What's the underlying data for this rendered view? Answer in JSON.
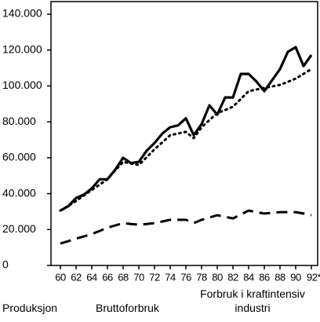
{
  "chart_data": {
    "type": "line",
    "x": [
      60,
      61,
      62,
      63,
      64,
      65,
      66,
      67,
      68,
      69,
      70,
      71,
      72,
      73,
      74,
      75,
      76,
      77,
      78,
      79,
      80,
      81,
      82,
      83,
      84,
      85,
      86,
      87,
      88,
      89,
      90,
      91,
      92
    ],
    "series": [
      {
        "name": "Produksjon",
        "color": "#000000",
        "style": "solid",
        "values": [
          30600,
          33000,
          37600,
          39400,
          42900,
          48000,
          48000,
          53400,
          60000,
          57000,
          57700,
          63900,
          68200,
          73500,
          77000,
          78000,
          82000,
          72600,
          78700,
          89200,
          84000,
          93600,
          93600,
          106700,
          106700,
          102400,
          97100,
          103200,
          109400,
          119000,
          121600,
          111100,
          117200
        ]
      },
      {
        "name": "Bruttoforbruk",
        "color": "#000000",
        "style": "dotted",
        "values": [
          30600,
          33200,
          35900,
          39000,
          42000,
          45000,
          48000,
          53000,
          57700,
          56800,
          56000,
          60300,
          64700,
          68600,
          72600,
          73500,
          74400,
          70900,
          77000,
          81000,
          84900,
          86600,
          88400,
          92700,
          97100,
          98000,
          98900,
          99700,
          100600,
          102300,
          104100,
          106700,
          109400
        ]
      },
      {
        "name": "Forbruk i kraftintensiv industri",
        "color": "#000000",
        "style": "dashed",
        "values": [
          12200,
          13500,
          14900,
          16200,
          17500,
          19200,
          21000,
          22300,
          23600,
          23100,
          22700,
          23100,
          23600,
          24500,
          25400,
          25400,
          25400,
          23600,
          25400,
          26700,
          28000,
          27100,
          26200,
          28400,
          30600,
          29700,
          28900,
          29300,
          29700,
          29700,
          29700,
          28900,
          28000
        ]
      }
    ],
    "xlim": [
      58.8,
      92.8
    ],
    "xticks": [
      60,
      62,
      64,
      66,
      68,
      70,
      72,
      74,
      76,
      78,
      80,
      82,
      84,
      86,
      88,
      90,
      {
        "value": 92,
        "label": "92*"
      }
    ],
    "ylim": [
      0,
      140000
    ],
    "yticks": [
      0,
      {
        "value": 20000,
        "label": "20.000"
      },
      {
        "value": 40000,
        "label": "40.000"
      },
      {
        "value": 60000,
        "label": "60.000"
      },
      {
        "value": 80000,
        "label": "80.000"
      },
      {
        "value": 100000,
        "label": "100.000"
      },
      {
        "value": 120000,
        "label": "120.000"
      },
      {
        "value": 140000,
        "label": "140.000"
      }
    ]
  }
}
